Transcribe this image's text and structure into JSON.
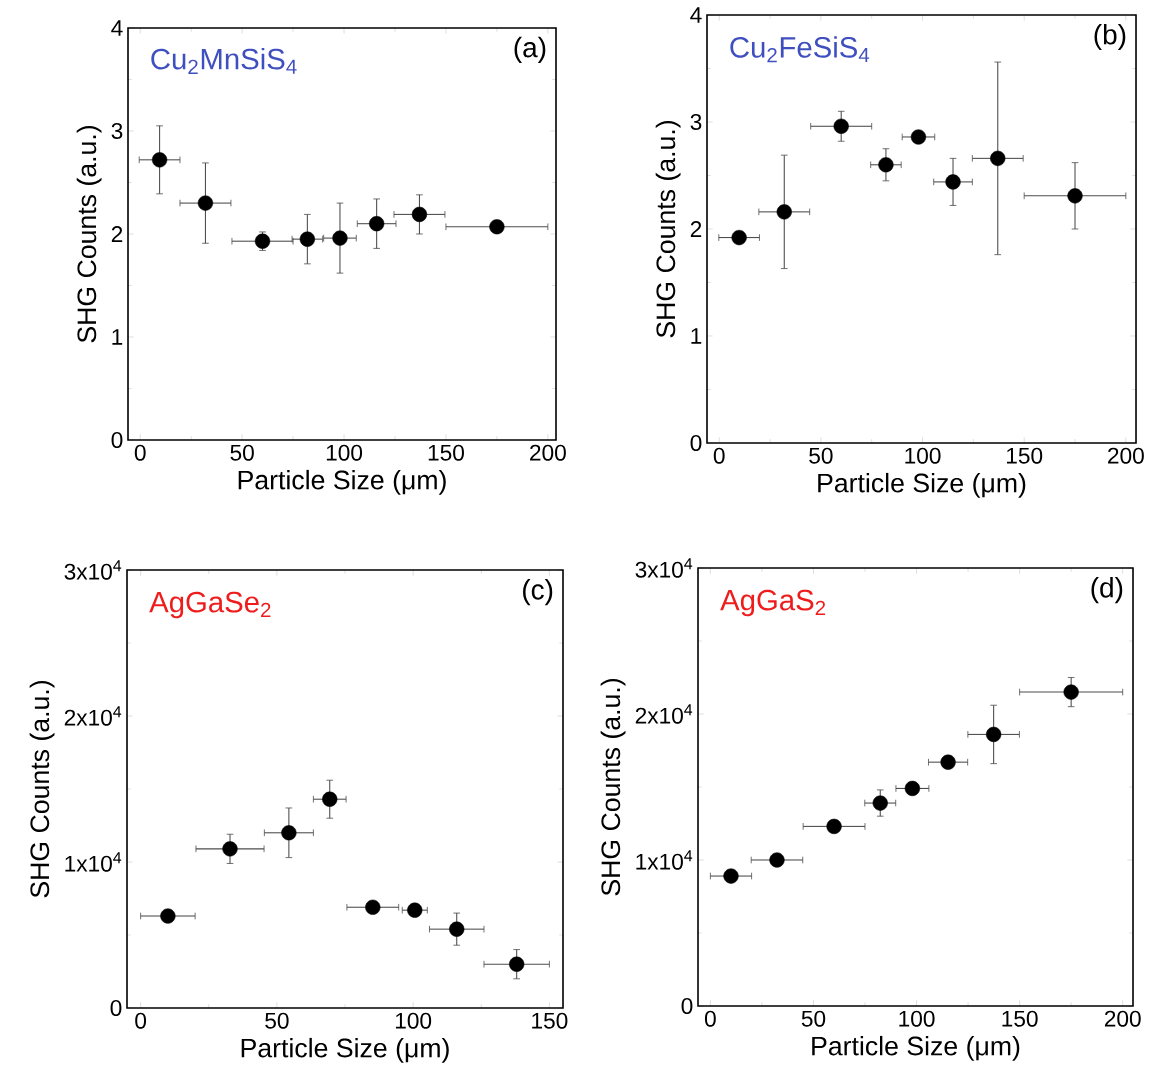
{
  "chart_data": [
    {
      "type": "scatter",
      "xlabel": "Particle Size (μm)",
      "ylabel": "SHG Counts (a.u.)",
      "annotations": [
        "Cu$_{2}$MnSiS$_{4}$",
        "(a)"
      ],
      "marker": "circle",
      "x": [
        9.5,
        32,
        60,
        82,
        98,
        116,
        137,
        175
      ],
      "values": [
        2.72,
        2.3,
        1.93,
        1.95,
        1.96,
        2.1,
        2.19,
        2.07
      ],
      "errors": [
        0.33,
        0.39,
        0.09,
        0.24,
        0.34,
        0.24,
        0.19,
        null
      ],
      "xerrors": [
        10,
        12.5,
        15,
        7.5,
        8,
        9.5,
        12.5,
        25
      ],
      "color": "#000000",
      "xlim": [
        -6,
        204
      ],
      "ylim": [
        0,
        4
      ],
      "xticks": [
        0,
        50,
        100,
        150,
        200
      ],
      "yticks": [
        0,
        1,
        2,
        3,
        4
      ]
    },
    {
      "type": "scatter",
      "xlabel": "Particle Size (μm)",
      "ylabel": "SHG Counts (a.u.)",
      "annotations": [
        "Cu$_{2}$FeSiS$_{4}$",
        "(b)"
      ],
      "marker": "circle",
      "x": [
        9.8,
        32,
        60,
        82,
        98,
        115,
        137,
        175
      ],
      "values": [
        1.92,
        2.16,
        2.96,
        2.6,
        2.86,
        2.44,
        2.66,
        2.31
      ],
      "errors": [
        null,
        0.53,
        0.14,
        0.15,
        null,
        0.22,
        0.9,
        0.31
      ],
      "xerrors": [
        10,
        12.5,
        15,
        7.5,
        8,
        9.5,
        12.5,
        25
      ],
      "color": "#000000",
      "xlim": [
        -6,
        205
      ],
      "ylim": [
        0,
        4
      ],
      "xticks": [
        0,
        50,
        100,
        150,
        200
      ],
      "yticks": [
        0,
        1,
        2,
        3,
        4
      ]
    },
    {
      "type": "scatter",
      "xlabel": "Particle Size (μm)",
      "ylabel": "SHG Counts (a.u.)",
      "annotations": [
        "AgGaSe$_{2}$",
        "(c)"
      ],
      "marker": "circle",
      "x": [
        10,
        32.8,
        54.4,
        69.4,
        85.2,
        100.6,
        116,
        138
      ],
      "values": [
        6300,
        10900,
        12000,
        14300,
        6900,
        6700,
        5400,
        3000
      ],
      "errors": [
        null,
        1000,
        1700,
        1300,
        null,
        null,
        1100,
        1000
      ],
      "xerrors": [
        10,
        12.5,
        9,
        6,
        9.5,
        4.6,
        10,
        12
      ],
      "color": "#000000",
      "xlim": [
        -5,
        155
      ],
      "ylim": [
        0,
        30000
      ],
      "xticks": [
        0,
        50,
        100,
        150
      ],
      "yticks": [
        0,
        {
          "value": 10000,
          "label": "1x10$^{4}$"
        },
        {
          "value": 20000,
          "label": "2x10$^{4}$"
        },
        {
          "value": 30000,
          "label": "3x10$^{4}$"
        }
      ]
    },
    {
      "type": "scatter",
      "xlabel": "Particle Size (μm)",
      "ylabel": "SHG Counts (a.u.)",
      "annotations": [
        "AgGaS$_{2}$",
        "(d)"
      ],
      "marker": "circle",
      "x": [
        10,
        32.3,
        60,
        82.4,
        98,
        115.3,
        137.4,
        175
      ],
      "values": [
        8900,
        10000,
        12300,
        13900,
        14900,
        16700,
        18600,
        21500
      ],
      "errors": [
        null,
        null,
        null,
        900,
        null,
        null,
        2000,
        1000
      ],
      "xerrors": [
        10,
        12.5,
        15,
        7.5,
        8,
        9.5,
        12.5,
        25
      ],
      "color": "#000000",
      "xlim": [
        -6,
        205
      ],
      "ylim": [
        0,
        30000
      ],
      "xticks": [
        0,
        50,
        100,
        150,
        200
      ],
      "yticks": [
        0,
        {
          "value": 10000,
          "label": "1x10$^{4}$"
        },
        {
          "value": 20000,
          "label": "2x10$^{4}$"
        },
        {
          "value": 30000,
          "label": "3x10$^{4}$"
        }
      ]
    }
  ]
}
